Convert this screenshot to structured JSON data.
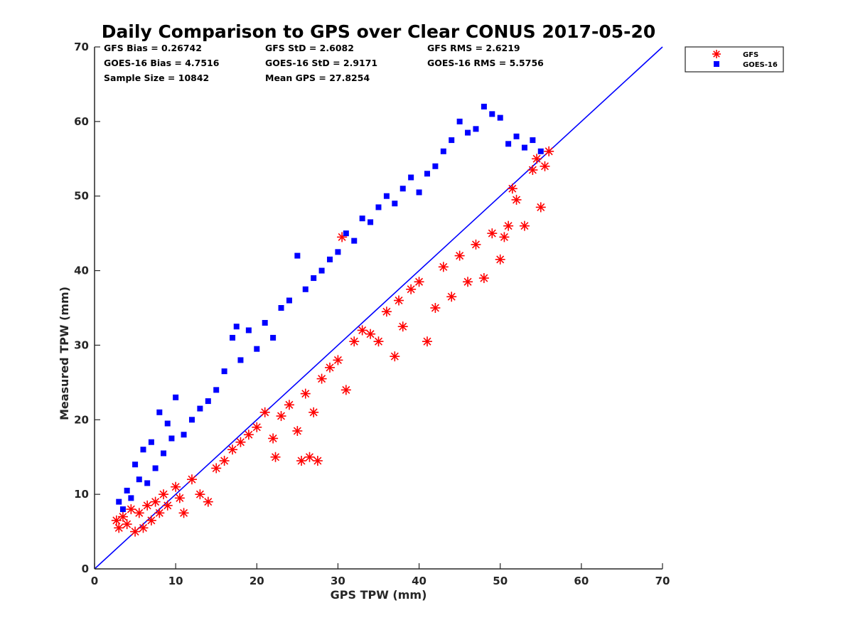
{
  "chart_data": {
    "type": "scatter",
    "title": "Daily Comparison to GPS over Clear CONUS 2017-05-20",
    "xlabel": "GPS TPW (mm)",
    "ylabel": "Measured TPW (mm)",
    "xlim": [
      0,
      70
    ],
    "ylim": [
      0,
      70
    ],
    "xticks": [
      "0",
      "10",
      "20",
      "30",
      "40",
      "50",
      "60",
      "70"
    ],
    "yticks": [
      "0",
      "10",
      "20",
      "30",
      "40",
      "50",
      "60",
      "70"
    ],
    "legend_position": "outside-top-right",
    "stats": {
      "gfs_bias": "GFS Bias = 0.26742",
      "gfs_std": "GFS StD = 2.6082",
      "gfs_rms": "GFS RMS = 2.6219",
      "goes_bias": "GOES-16 Bias = 4.7516",
      "goes_std": "GOES-16 StD = 2.9171",
      "goes_rms": "GOES-16 RMS = 5.5756",
      "sample_size": "Sample Size = 10842",
      "mean_gps": "Mean GPS = 27.8254"
    },
    "reference_line": {
      "name": "1:1",
      "x": [
        0,
        70
      ],
      "y": [
        0,
        70
      ],
      "color": "#0000ff"
    },
    "series": [
      {
        "name": "GFS",
        "marker": "asterisk",
        "color": "#ff0000",
        "x": [
          2.7,
          3.0,
          3.5,
          4.0,
          4.5,
          5.0,
          5.5,
          6.0,
          6.5,
          7.0,
          7.5,
          8.0,
          8.5,
          9.0,
          10.0,
          10.5,
          11.0,
          12.0,
          13.0,
          14.0,
          15.0,
          16.0,
          17.0,
          18.0,
          19.0,
          20.0,
          21.0,
          22.0,
          22.3,
          23.0,
          24.0,
          25.0,
          25.5,
          26.0,
          26.5,
          27.0,
          27.5,
          28.0,
          29.0,
          30.0,
          30.5,
          31.0,
          32.0,
          33.0,
          34.0,
          35.0,
          36.0,
          37.0,
          37.5,
          38.0,
          39.0,
          40.0,
          41.0,
          42.0,
          43.0,
          44.0,
          45.0,
          46.0,
          47.0,
          48.0,
          49.0,
          50.0,
          50.5,
          51.0,
          51.5,
          52.0,
          53.0,
          54.0,
          54.5,
          55.0,
          55.5,
          56.0
        ],
        "y": [
          6.5,
          5.5,
          7.0,
          6.0,
          8.0,
          5.0,
          7.5,
          5.5,
          8.5,
          6.5,
          9.0,
          7.5,
          10.0,
          8.5,
          11.0,
          9.5,
          7.5,
          12.0,
          10.0,
          9.0,
          13.5,
          14.5,
          16.0,
          17.0,
          18.0,
          19.0,
          21.0,
          17.5,
          15.0,
          20.5,
          22.0,
          18.5,
          14.5,
          23.5,
          15.0,
          21.0,
          14.5,
          25.5,
          27.0,
          28.0,
          44.5,
          24.0,
          30.5,
          32.0,
          31.5,
          30.5,
          34.5,
          28.5,
          36.0,
          32.5,
          37.5,
          38.5,
          30.5,
          35.0,
          40.5,
          36.5,
          42.0,
          38.5,
          43.5,
          39.0,
          45.0,
          41.5,
          44.5,
          46.0,
          51.0,
          49.5,
          46.0,
          53.5,
          55.0,
          48.5,
          54.0,
          56.0
        ]
      },
      {
        "name": "GOES-16",
        "marker": "square",
        "color": "#0000ff",
        "x": [
          3.0,
          3.5,
          4.0,
          4.5,
          5.0,
          5.5,
          6.0,
          6.5,
          7.0,
          7.5,
          8.0,
          8.5,
          9.0,
          9.5,
          10.0,
          11.0,
          12.0,
          13.0,
          14.0,
          15.0,
          16.0,
          17.0,
          17.5,
          18.0,
          19.0,
          20.0,
          21.0,
          22.0,
          23.0,
          24.0,
          25.0,
          26.0,
          27.0,
          28.0,
          29.0,
          30.0,
          31.0,
          32.0,
          33.0,
          34.0,
          35.0,
          36.0,
          37.0,
          38.0,
          39.0,
          40.0,
          41.0,
          42.0,
          43.0,
          44.0,
          45.0,
          46.0,
          47.0,
          48.0,
          49.0,
          50.0,
          51.0,
          52.0,
          53.0,
          54.0,
          55.0
        ],
        "y": [
          9.0,
          8.0,
          10.5,
          9.5,
          14.0,
          12.0,
          16.0,
          11.5,
          17.0,
          13.5,
          21.0,
          15.5,
          19.5,
          17.5,
          23.0,
          18.0,
          20.0,
          21.5,
          22.5,
          24.0,
          26.5,
          31.0,
          32.5,
          28.0,
          32.0,
          29.5,
          33.0,
          31.0,
          35.0,
          36.0,
          42.0,
          37.5,
          39.0,
          40.0,
          41.5,
          42.5,
          45.0,
          44.0,
          47.0,
          46.5,
          48.5,
          50.0,
          49.0,
          51.0,
          52.5,
          50.5,
          53.0,
          54.0,
          56.0,
          57.5,
          60.0,
          58.5,
          59.0,
          62.0,
          61.0,
          60.5,
          57.0,
          58.0,
          56.5,
          57.5,
          56.0
        ]
      }
    ]
  }
}
